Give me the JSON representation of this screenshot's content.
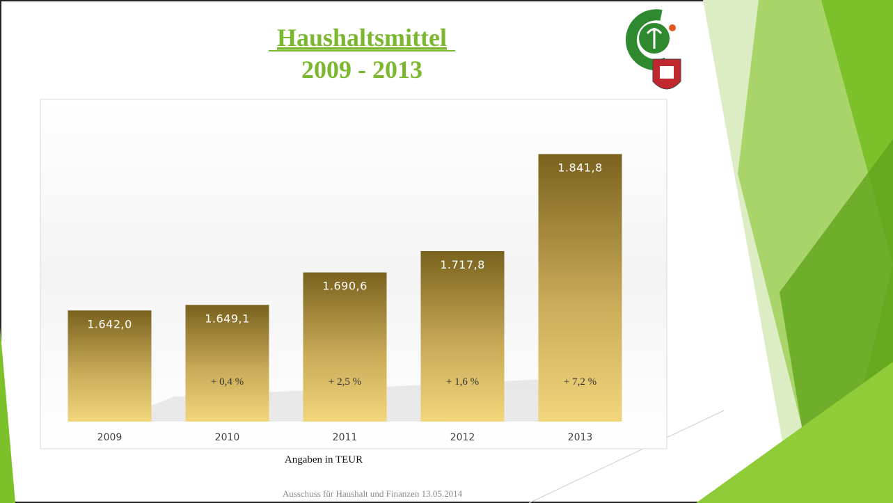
{
  "chart_data": {
    "type": "bar",
    "title": "Haushaltsmittel",
    "subtitle": "2009 - 2013",
    "categories": [
      "2009",
      "2010",
      "2011",
      "2012",
      "2013"
    ],
    "values": [
      1642.0,
      1649.1,
      1690.6,
      1717.8,
      1841.8
    ],
    "value_labels": [
      "1.642,0",
      "1.649,1",
      "1.690,6",
      "1.717,8",
      "1.841,8"
    ],
    "growth_labels": [
      null,
      "+ 0,4 %",
      "+ 2,5 %",
      "+ 1,6 %",
      "+ 7,2 %"
    ],
    "color": "#f2d67c",
    "ylim": [
      1500,
      1900
    ],
    "note": "Angaben in TEUR",
    "footer": "Ausschuss für Haushalt und Finanzen 13.05.2014"
  }
}
